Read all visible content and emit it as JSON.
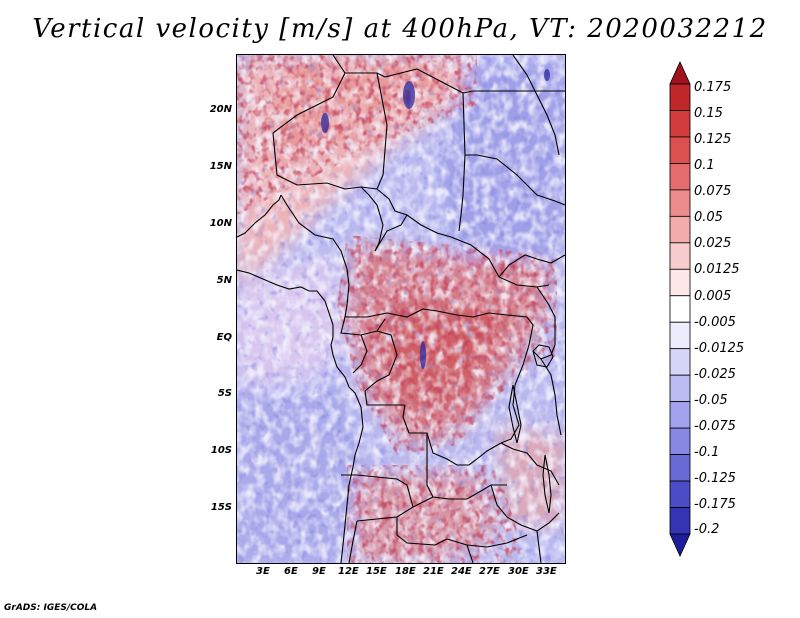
{
  "title": "Vertical velocity [m/s] at 400hPa, VT: 2020032212",
  "map": {
    "lat_labels": [
      "20N",
      "15N",
      "10N",
      "5N",
      "EQ",
      "5S",
      "10S",
      "15S"
    ],
    "lon_labels": [
      "3E",
      "6E",
      "9E",
      "12E",
      "15E",
      "18E",
      "21E",
      "24E",
      "27E",
      "30E",
      "33E"
    ]
  },
  "legend": {
    "labels": [
      "0.175",
      "0.15",
      "0.125",
      "0.1",
      "0.075",
      "0.05",
      "0.025",
      "0.0125",
      "0.005",
      "-0.005",
      "-0.0125",
      "-0.025",
      "-0.05",
      "-0.075",
      "-0.1",
      "-0.125",
      "-0.175",
      "-0.2"
    ],
    "colors": [
      "#a0141e",
      "#c0282a",
      "#d23c3c",
      "#dc5050",
      "#e46c6c",
      "#ec8c8c",
      "#f2acac",
      "#f8cccc",
      "#fce8e8",
      "#ffffff",
      "#ececfc",
      "#d6d6f8",
      "#bcbcf4",
      "#a2a2ee",
      "#8888e4",
      "#6a6ad6",
      "#4c4cc6",
      "#3434b4",
      "#1e1e9c"
    ]
  },
  "credit": "GrADS: IGES/COLA"
}
